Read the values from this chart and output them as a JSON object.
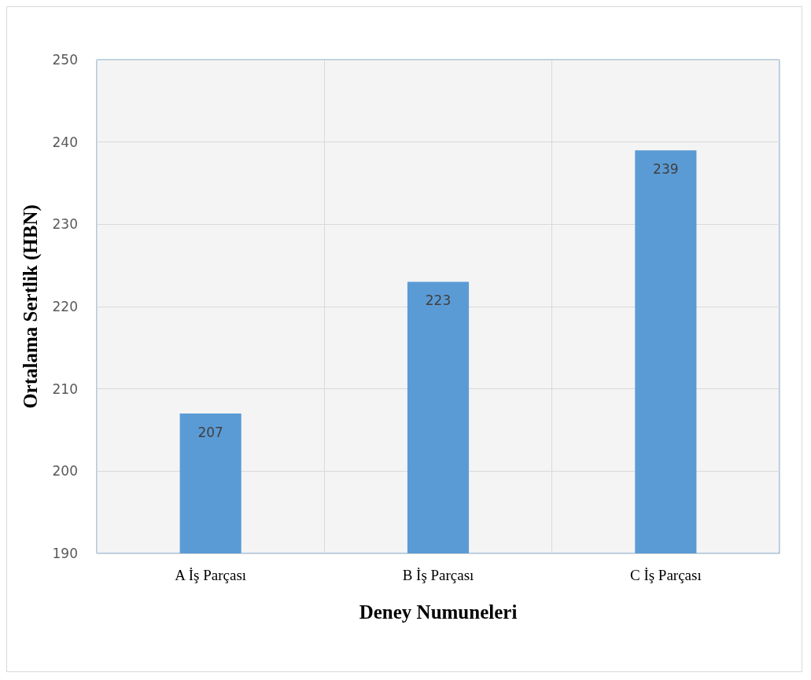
{
  "chart_data": {
    "type": "bar",
    "xlabel": "Deney Numuneleri",
    "ylabel": "Ortalama Sertlik (HBN)",
    "categories": [
      "A İş Parçası",
      "B İş Parçası",
      "C İş Parçası"
    ],
    "values": [
      207,
      223,
      239
    ],
    "color": "#5b9bd5",
    "ylim": [
      190,
      250
    ],
    "yticks": [
      190,
      200,
      210,
      220,
      230,
      240,
      250
    ],
    "grid": true,
    "data_labels": true
  }
}
